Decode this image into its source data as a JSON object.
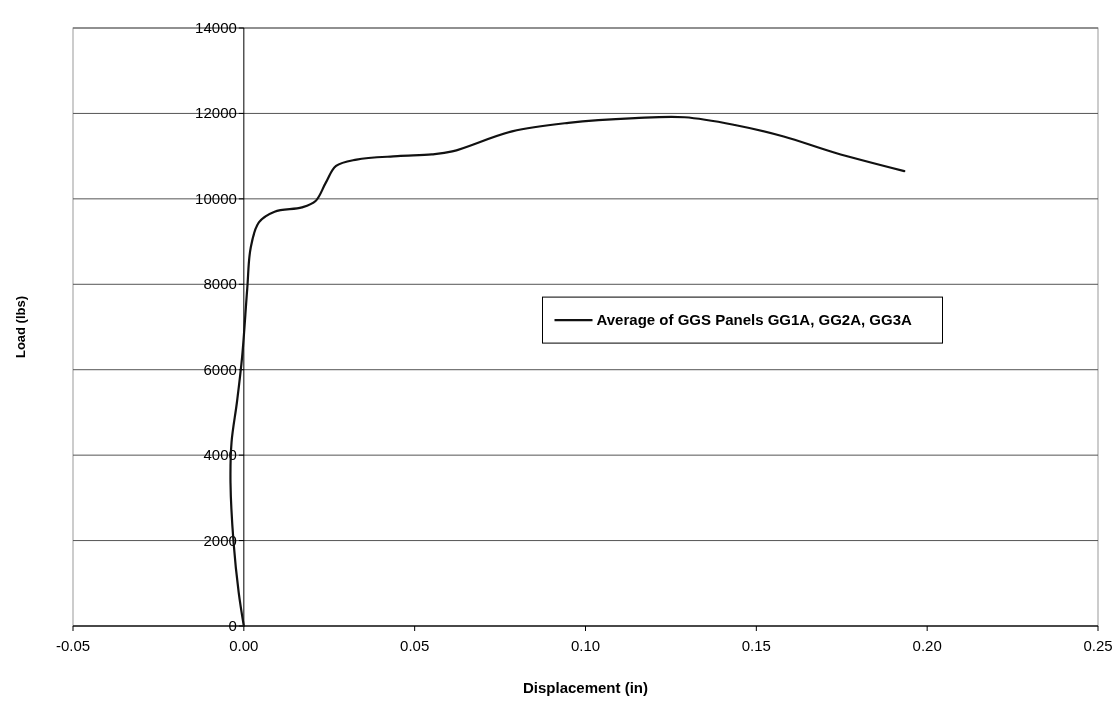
{
  "chart_data": {
    "type": "line",
    "xlabel": "Displacement (in)",
    "ylabel": "Load (lbs)",
    "xlim": [
      -0.05,
      0.25
    ],
    "xticks": [
      {
        "value": -0.05,
        "label": "-0.05"
      },
      {
        "value": 0,
        "label": "0.00"
      },
      {
        "value": 0.05,
        "label": "0.05"
      },
      {
        "value": 0.1,
        "label": "0.10"
      },
      {
        "value": 0.15,
        "label": "0.15"
      },
      {
        "value": 0.2,
        "label": "0.20"
      },
      {
        "value": 0.25,
        "label": "0.25"
      }
    ],
    "ylim": [
      0,
      14000
    ],
    "yticks": [
      0,
      2000,
      4000,
      6000,
      8000,
      10000,
      12000,
      14000
    ],
    "grid": "y",
    "legend": "center",
    "marker": "none",
    "line_style": "solid",
    "series": [
      {
        "name": "Average of GGS Panels GG1A, GG2A, GG3A",
        "color": "#111111",
        "x": [
          0,
          -0.0015,
          -0.003,
          -0.0039,
          -0.0036,
          -0.002,
          -0.0005,
          0.001,
          0.002,
          0.0044,
          0.009,
          0.017,
          0.021,
          0.024,
          0.027,
          0.033,
          0.045,
          0.055,
          0.061,
          0.0785,
          0.095,
          0.1145,
          0.129,
          0.1437,
          0.158,
          0.173,
          0.1933
        ],
        "values": [
          0,
          780,
          1950,
          3350,
          4300,
          5250,
          6300,
          7900,
          8850,
          9450,
          9700,
          9800,
          9950,
          10380,
          10770,
          10920,
          11000,
          11040,
          11110,
          11580,
          11780,
          11890,
          11910,
          11730,
          11460,
          11080,
          10650
        ]
      }
    ]
  }
}
